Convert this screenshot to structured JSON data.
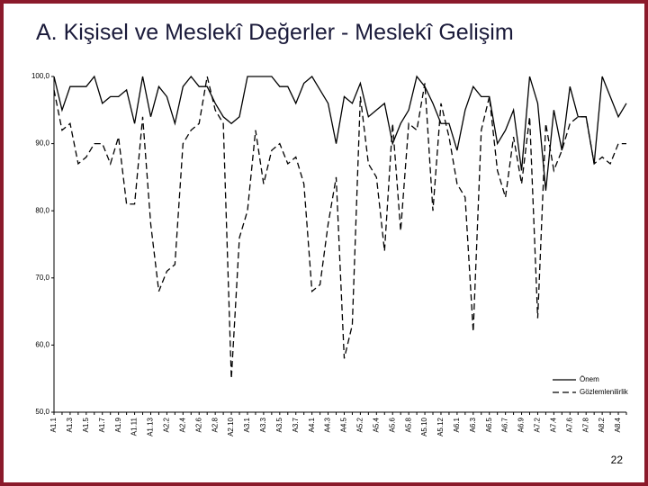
{
  "page": {
    "title": "A. Kişisel ve Meslekî Değerler - Meslekî Gelişim",
    "page_number": "22"
  },
  "chart_data": {
    "type": "line",
    "categories": [
      "A1.1",
      null,
      "A1.3",
      null,
      "A1.5",
      null,
      "A1.7",
      null,
      "A1.9",
      null,
      "A1.11",
      null,
      "A1.13",
      null,
      "A2.2",
      null,
      "A2.4",
      null,
      "A2.6",
      null,
      "A2.8",
      null,
      "A2.10",
      null,
      "A3.1",
      null,
      "A3.3",
      null,
      "A3.5",
      null,
      "A3.7",
      null,
      "A4.1",
      null,
      "A4.3",
      null,
      "A4.5",
      null,
      "A5.2",
      null,
      "A5.4",
      null,
      "A5.6",
      null,
      "A5.8",
      null,
      "A5.10",
      null,
      "A5.12",
      null,
      "A6.1",
      null,
      "A6.3",
      null,
      "A6.5",
      null,
      "A6.7",
      null,
      "A6.9",
      null,
      "A7.2",
      null,
      "A7.4",
      null,
      "A7.6",
      null,
      "A7.8",
      null,
      "A8.2",
      null,
      "A8.4",
      null
    ],
    "series": [
      {
        "name": "Önem",
        "color": "#000000",
        "line_style": "solid",
        "values": [
          100,
          95,
          98.5,
          98.5,
          98.5,
          100,
          96,
          97,
          97,
          98,
          93,
          100,
          94,
          98.5,
          97,
          93,
          98.5,
          100,
          98.5,
          98.5,
          96,
          94,
          93,
          94,
          100,
          100,
          100,
          100,
          98.5,
          98.5,
          96,
          99,
          100,
          98,
          96,
          90,
          97,
          96,
          99,
          94,
          95,
          96,
          90,
          93,
          95,
          100,
          98.5,
          96,
          93,
          93,
          89,
          95,
          98.5,
          97,
          97,
          90,
          92,
          95,
          86,
          100,
          96,
          83,
          95,
          89,
          98.5,
          94,
          94,
          87,
          100,
          97,
          94,
          96
        ]
      },
      {
        "name": "Gözlemlenilirlik",
        "color": "#000000",
        "line_style": "dashed",
        "values": [
          98,
          92,
          93,
          87,
          88,
          90,
          90,
          87,
          91,
          81,
          81,
          94,
          78,
          68,
          71,
          72,
          90,
          92,
          93,
          100,
          95,
          93,
          55,
          76,
          80,
          92,
          84,
          89,
          90,
          87,
          88,
          84,
          68,
          69,
          78,
          85,
          58,
          63,
          97,
          87,
          85,
          74,
          93,
          77,
          93,
          92,
          99,
          80,
          96,
          91,
          84,
          82,
          62,
          92,
          97,
          86,
          82,
          91,
          84,
          94,
          64,
          93,
          86,
          89,
          93,
          94,
          94,
          87,
          88,
          87,
          90,
          90
        ]
      }
    ],
    "ylim": [
      50,
      100
    ],
    "yticks": [
      {
        "value": 50,
        "label": "50,0"
      },
      {
        "value": 60,
        "label": "60,0"
      },
      {
        "value": 70,
        "label": "70,0"
      },
      {
        "value": 80,
        "label": "80,0"
      },
      {
        "value": 90,
        "label": "90,0"
      },
      {
        "value": 100,
        "label": "100,0"
      }
    ],
    "legend": "lower right"
  }
}
